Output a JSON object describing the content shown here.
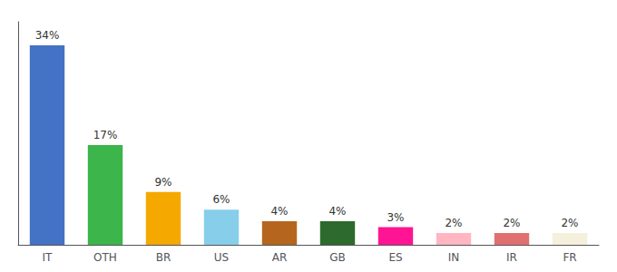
{
  "chart_data": {
    "type": "bar",
    "categories": [
      "IT",
      "OTH",
      "BR",
      "US",
      "AR",
      "GB",
      "ES",
      "IN",
      "IR",
      "FR"
    ],
    "values": [
      34,
      17,
      9,
      6,
      4,
      4,
      3,
      2,
      2,
      2
    ],
    "value_labels": [
      "34%",
      "17%",
      "9%",
      "6%",
      "4%",
      "4%",
      "3%",
      "2%",
      "2%",
      "2%"
    ],
    "colors": [
      "#4472c4",
      "#3cb54a",
      "#f5a800",
      "#87ceeb",
      "#b5651d",
      "#2d6a2d",
      "#ff1493",
      "#ffb6c1",
      "#e07070",
      "#f5f0dc"
    ],
    "ylim": [
      0,
      38
    ],
    "grid": false,
    "data_labels": true,
    "tick_labels": "x"
  }
}
